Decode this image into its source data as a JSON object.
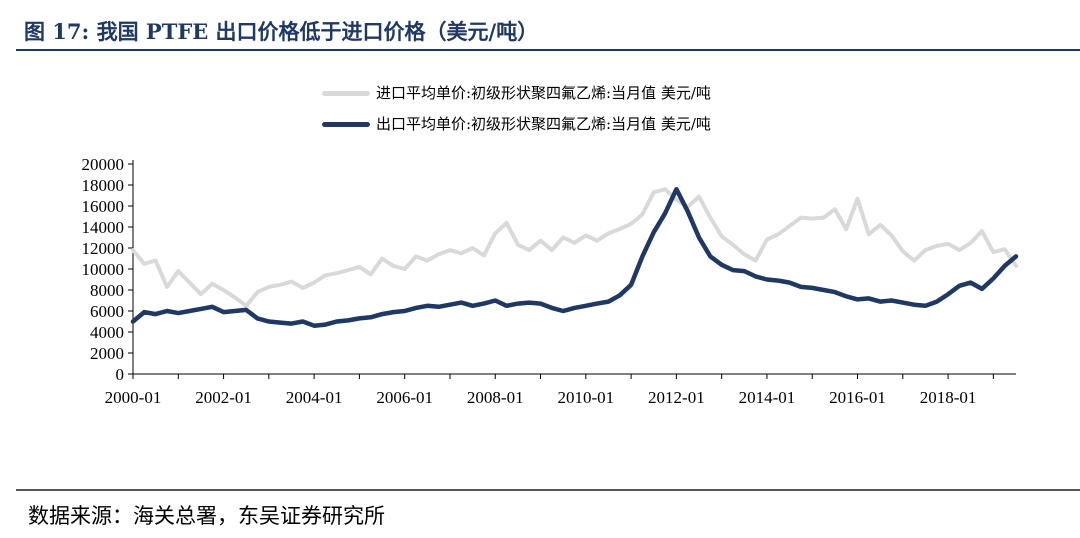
{
  "figure": {
    "title": "图 17:  我国 PTFE 出口价格低于进口价格（美元/吨）",
    "source": "数据来源：海关总署，东吴证券研究所"
  },
  "colors": {
    "import": "#d9d9d9",
    "export": "#1f3864",
    "title": "#1f3864"
  },
  "chart_data": {
    "type": "line",
    "title": "",
    "xlabel": "",
    "ylabel": "",
    "ylim": [
      0,
      20000
    ],
    "yticks": [
      0,
      2000,
      4000,
      6000,
      8000,
      10000,
      12000,
      14000,
      16000,
      18000,
      20000
    ],
    "xticks": [
      "2000-01",
      "2002-01",
      "2004-01",
      "2006-01",
      "2008-01",
      "2010-01",
      "2012-01",
      "2014-01",
      "2016-01",
      "2018-01"
    ],
    "x_range": [
      "2000-01",
      "2019-07"
    ],
    "grid": false,
    "legend_position": "top-center",
    "series": [
      {
        "name": "进口平均单价:初级形状聚四氟乙烯:当月值 美元/吨",
        "color": "#d9d9d9",
        "points": [
          [
            "2000-01",
            11800
          ],
          [
            "2000-04",
            10500
          ],
          [
            "2000-07",
            10800
          ],
          [
            "2000-10",
            8300
          ],
          [
            "2001-01",
            9800
          ],
          [
            "2001-04",
            8700
          ],
          [
            "2001-07",
            7600
          ],
          [
            "2001-10",
            8600
          ],
          [
            "2002-01",
            8000
          ],
          [
            "2002-04",
            7300
          ],
          [
            "2002-07",
            6500
          ],
          [
            "2002-10",
            7800
          ],
          [
            "2003-01",
            8300
          ],
          [
            "2003-04",
            8500
          ],
          [
            "2003-07",
            8800
          ],
          [
            "2003-10",
            8200
          ],
          [
            "2004-01",
            8700
          ],
          [
            "2004-04",
            9400
          ],
          [
            "2004-07",
            9600
          ],
          [
            "2004-10",
            9900
          ],
          [
            "2005-01",
            10200
          ],
          [
            "2005-04",
            9500
          ],
          [
            "2005-07",
            11000
          ],
          [
            "2005-10",
            10300
          ],
          [
            "2006-01",
            10000
          ],
          [
            "2006-04",
            11200
          ],
          [
            "2006-07",
            10800
          ],
          [
            "2006-10",
            11400
          ],
          [
            "2007-01",
            11800
          ],
          [
            "2007-04",
            11500
          ],
          [
            "2007-07",
            12000
          ],
          [
            "2007-10",
            11300
          ],
          [
            "2008-01",
            13400
          ],
          [
            "2008-04",
            14400
          ],
          [
            "2008-07",
            12300
          ],
          [
            "2008-10",
            11800
          ],
          [
            "2009-01",
            12700
          ],
          [
            "2009-04",
            11800
          ],
          [
            "2009-07",
            13000
          ],
          [
            "2009-10",
            12500
          ],
          [
            "2010-01",
            13200
          ],
          [
            "2010-04",
            12700
          ],
          [
            "2010-07",
            13400
          ],
          [
            "2010-10",
            13800
          ],
          [
            "2011-01",
            14300
          ],
          [
            "2011-04",
            15200
          ],
          [
            "2011-07",
            17300
          ],
          [
            "2011-10",
            17600
          ],
          [
            "2012-01",
            16600
          ],
          [
            "2012-04",
            15900
          ],
          [
            "2012-07",
            16900
          ],
          [
            "2012-10",
            14900
          ],
          [
            "2013-01",
            13100
          ],
          [
            "2013-04",
            12300
          ],
          [
            "2013-07",
            11400
          ],
          [
            "2013-10",
            10800
          ],
          [
            "2014-01",
            12800
          ],
          [
            "2014-04",
            13300
          ],
          [
            "2014-07",
            14100
          ],
          [
            "2014-10",
            14900
          ],
          [
            "2015-01",
            14800
          ],
          [
            "2015-04",
            14900
          ],
          [
            "2015-07",
            15700
          ],
          [
            "2015-10",
            13800
          ],
          [
            "2016-01",
            16700
          ],
          [
            "2016-04",
            13300
          ],
          [
            "2016-07",
            14200
          ],
          [
            "2016-10",
            13200
          ],
          [
            "2017-01",
            11700
          ],
          [
            "2017-04",
            10800
          ],
          [
            "2017-07",
            11800
          ],
          [
            "2017-10",
            12200
          ],
          [
            "2018-01",
            12400
          ],
          [
            "2018-04",
            11800
          ],
          [
            "2018-07",
            12500
          ],
          [
            "2018-10",
            13600
          ],
          [
            "2019-01",
            11600
          ],
          [
            "2019-04",
            11900
          ],
          [
            "2019-07",
            10300
          ]
        ]
      },
      {
        "name": "出口平均单价:初级形状聚四氟乙烯:当月值 美元/吨",
        "color": "#1f3864",
        "points": [
          [
            "2000-01",
            5000
          ],
          [
            "2000-04",
            5900
          ],
          [
            "2000-07",
            5700
          ],
          [
            "2000-10",
            6000
          ],
          [
            "2001-01",
            5800
          ],
          [
            "2001-04",
            6000
          ],
          [
            "2001-07",
            6200
          ],
          [
            "2001-10",
            6400
          ],
          [
            "2002-01",
            5900
          ],
          [
            "2002-04",
            6000
          ],
          [
            "2002-07",
            6100
          ],
          [
            "2002-10",
            5300
          ],
          [
            "2003-01",
            5000
          ],
          [
            "2003-04",
            4900
          ],
          [
            "2003-07",
            4800
          ],
          [
            "2003-10",
            5000
          ],
          [
            "2004-01",
            4600
          ],
          [
            "2004-04",
            4700
          ],
          [
            "2004-07",
            5000
          ],
          [
            "2004-10",
            5100
          ],
          [
            "2005-01",
            5300
          ],
          [
            "2005-04",
            5400
          ],
          [
            "2005-07",
            5700
          ],
          [
            "2005-10",
            5900
          ],
          [
            "2006-01",
            6000
          ],
          [
            "2006-04",
            6300
          ],
          [
            "2006-07",
            6500
          ],
          [
            "2006-10",
            6400
          ],
          [
            "2007-01",
            6600
          ],
          [
            "2007-04",
            6800
          ],
          [
            "2007-07",
            6500
          ],
          [
            "2007-10",
            6700
          ],
          [
            "2008-01",
            7000
          ],
          [
            "2008-04",
            6500
          ],
          [
            "2008-07",
            6700
          ],
          [
            "2008-10",
            6800
          ],
          [
            "2009-01",
            6700
          ],
          [
            "2009-04",
            6300
          ],
          [
            "2009-07",
            6000
          ],
          [
            "2009-10",
            6300
          ],
          [
            "2010-01",
            6500
          ],
          [
            "2010-04",
            6700
          ],
          [
            "2010-07",
            6900
          ],
          [
            "2010-10",
            7500
          ],
          [
            "2011-01",
            8500
          ],
          [
            "2011-04",
            11200
          ],
          [
            "2011-07",
            13500
          ],
          [
            "2011-10",
            15300
          ],
          [
            "2012-01",
            17600
          ],
          [
            "2012-04",
            15500
          ],
          [
            "2012-07",
            13000
          ],
          [
            "2012-10",
            11200
          ],
          [
            "2013-01",
            10400
          ],
          [
            "2013-04",
            9900
          ],
          [
            "2013-07",
            9800
          ],
          [
            "2013-10",
            9300
          ],
          [
            "2014-01",
            9000
          ],
          [
            "2014-04",
            8900
          ],
          [
            "2014-07",
            8700
          ],
          [
            "2014-10",
            8300
          ],
          [
            "2015-01",
            8200
          ],
          [
            "2015-04",
            8000
          ],
          [
            "2015-07",
            7800
          ],
          [
            "2015-10",
            7400
          ],
          [
            "2016-01",
            7100
          ],
          [
            "2016-04",
            7200
          ],
          [
            "2016-07",
            6900
          ],
          [
            "2016-10",
            7000
          ],
          [
            "2017-01",
            6800
          ],
          [
            "2017-04",
            6600
          ],
          [
            "2017-07",
            6500
          ],
          [
            "2017-10",
            6900
          ],
          [
            "2018-01",
            7600
          ],
          [
            "2018-04",
            8400
          ],
          [
            "2018-07",
            8700
          ],
          [
            "2018-10",
            8100
          ],
          [
            "2019-01",
            9100
          ],
          [
            "2019-04",
            10300
          ],
          [
            "2019-07",
            11200
          ]
        ]
      }
    ]
  }
}
